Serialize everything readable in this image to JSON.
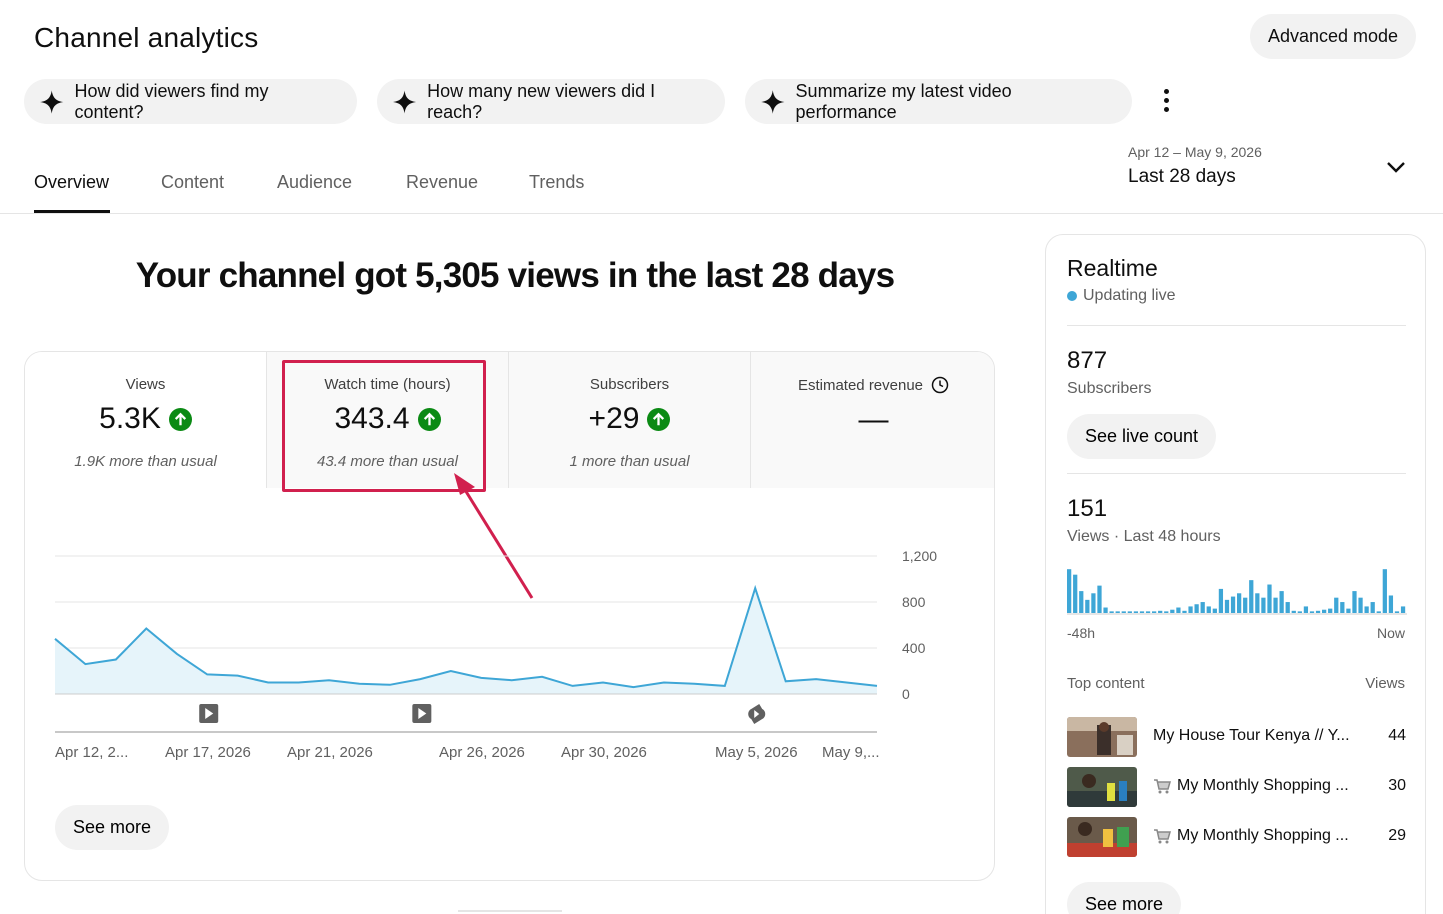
{
  "header": {
    "title": "Channel analytics",
    "advanced_mode": "Advanced mode"
  },
  "chips": [
    {
      "label": "How did viewers find my content?",
      "icon": "sparkle-icon"
    },
    {
      "label": "How many new viewers did I reach?",
      "icon": "sparkle-icon"
    },
    {
      "label": "Summarize my latest video performance",
      "icon": "sparkle-icon"
    }
  ],
  "tabs": [
    {
      "label": "Overview",
      "active": true
    },
    {
      "label": "Content",
      "active": false
    },
    {
      "label": "Audience",
      "active": false
    },
    {
      "label": "Revenue",
      "active": false
    },
    {
      "label": "Trends",
      "active": false
    }
  ],
  "date_range": {
    "range": "Apr 12 – May 9, 2026",
    "label": "Last 28 days"
  },
  "headline": "Your channel got 5,305 views in the last 28 days",
  "metrics": [
    {
      "label": "Views",
      "value": "5.3K",
      "note": "1.9K more than usual",
      "trend": "up"
    },
    {
      "label": "Watch time (hours)",
      "value": "343.4",
      "note": "43.4 more than usual",
      "trend": "up",
      "selected": true
    },
    {
      "label": "Subscribers",
      "value": "+29",
      "note": "1 more than usual",
      "trend": "up"
    },
    {
      "label": "Estimated revenue",
      "value": "—",
      "note": "",
      "icon": "clock-icon"
    }
  ],
  "chart_data": {
    "type": "area",
    "x_ticks": [
      "Apr 12, 2...",
      "Apr 17, 2026",
      "Apr 21, 2026",
      "Apr 26, 2026",
      "Apr 30, 2026",
      "May 5, 2026",
      "May 9,..."
    ],
    "y_ticks": [
      "1,200",
      "800",
      "400",
      "0"
    ],
    "ylim": [
      0,
      1200
    ],
    "values": [
      480,
      260,
      300,
      570,
      350,
      170,
      160,
      100,
      100,
      120,
      90,
      80,
      130,
      200,
      140,
      120,
      150,
      70,
      100,
      60,
      100,
      90,
      70,
      920,
      110,
      130,
      100,
      70
    ],
    "color": "#3ea6d6",
    "markers": [
      {
        "index": 5,
        "icon": "video-icon"
      },
      {
        "index": 12,
        "icon": "video-icon"
      },
      {
        "index": 23,
        "icon": "shorts-icon"
      }
    ]
  },
  "see_more": "See more",
  "realtime": {
    "title": "Realtime",
    "status": "Updating live",
    "subscribers_value": "877",
    "subscribers_label": "Subscribers",
    "live_count_button": "See live count",
    "views_value": "151",
    "views_label": "Views · Last 48 hours",
    "axis_start": "-48h",
    "axis_end": "Now",
    "bars": [
      40,
      35,
      20,
      12,
      18,
      25,
      5,
      0,
      0,
      0,
      0,
      0,
      0,
      0,
      0,
      2,
      1,
      3,
      5,
      2,
      6,
      8,
      10,
      6,
      4,
      22,
      12,
      15,
      18,
      14,
      30,
      18,
      14,
      26,
      14,
      20,
      10,
      2,
      0,
      6,
      0,
      2,
      3,
      4,
      14,
      10,
      4,
      20,
      14,
      6,
      10,
      0,
      40,
      16,
      0,
      6
    ],
    "top_content_label": "Top content",
    "views_col_label": "Views",
    "top_content": [
      {
        "title": "My House Tour Kenya // Y...",
        "views": "44",
        "cart": false
      },
      {
        "title": "My Monthly Shopping ...",
        "views": "30",
        "cart": true
      },
      {
        "title": "My Monthly Shopping ...",
        "views": "29",
        "cart": true
      }
    ],
    "see_more": "See more"
  }
}
